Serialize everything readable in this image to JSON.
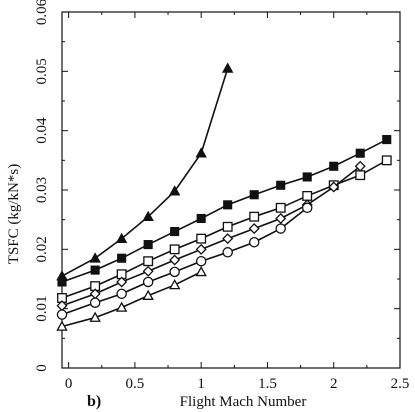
{
  "chart_data": {
    "type": "line",
    "title": "",
    "xlabel": "Flight Mach Number",
    "ylabel": "TSFC (kg/kN*s)",
    "panel_label": "b)",
    "xlim": [
      -0.05,
      2.5
    ],
    "ylim": [
      0,
      0.06
    ],
    "x_ticks": [
      0,
      0.5,
      1,
      1.5,
      2,
      2.5
    ],
    "x_tick_labels": [
      "0",
      "0.5",
      "1",
      "1.5",
      "2",
      "2.5"
    ],
    "y_ticks": [
      0,
      0.01,
      0.02,
      0.03,
      0.04,
      0.05,
      0.06
    ],
    "y_tick_labels": [
      "0",
      "0.01",
      "0.02",
      "0.03",
      "0.04",
      "0.05",
      "0.06"
    ],
    "grid": false,
    "legend": "none",
    "series": [
      {
        "marker": "filled-triangle",
        "x": [
          -0.05,
          0.2,
          0.4,
          0.6,
          0.8,
          1.0,
          1.2
        ],
        "y": [
          0.0155,
          0.0185,
          0.0218,
          0.0255,
          0.0298,
          0.0362,
          0.0505
        ]
      },
      {
        "marker": "filled-square",
        "x": [
          -0.05,
          0.2,
          0.4,
          0.6,
          0.8,
          1.0,
          1.2,
          1.4,
          1.6,
          1.8,
          2.0,
          2.2,
          2.4
        ],
        "y": [
          0.0145,
          0.0165,
          0.0185,
          0.0208,
          0.023,
          0.0252,
          0.0275,
          0.0292,
          0.0308,
          0.0322,
          0.034,
          0.0362,
          0.0385
        ]
      },
      {
        "marker": "open-square",
        "x": [
          -0.05,
          0.2,
          0.4,
          0.6,
          0.8,
          1.0,
          1.2,
          1.4,
          1.6,
          1.8,
          2.0,
          2.2,
          2.4
        ],
        "y": [
          0.0118,
          0.0138,
          0.0158,
          0.018,
          0.02,
          0.0218,
          0.0238,
          0.0255,
          0.027,
          0.029,
          0.0308,
          0.0325,
          0.035
        ]
      },
      {
        "marker": "open-diamond",
        "x": [
          -0.05,
          0.2,
          0.4,
          0.6,
          0.8,
          1.0,
          1.2,
          1.4,
          1.6,
          1.8,
          2.0,
          2.2
        ],
        "y": [
          0.0105,
          0.0125,
          0.0145,
          0.0163,
          0.0182,
          0.02,
          0.0218,
          0.0235,
          0.0252,
          0.0275,
          0.0305,
          0.034
        ]
      },
      {
        "marker": "open-circle",
        "x": [
          -0.05,
          0.2,
          0.4,
          0.6,
          0.8,
          1.0,
          1.2,
          1.4,
          1.6,
          1.8
        ],
        "y": [
          0.009,
          0.011,
          0.0125,
          0.0145,
          0.0162,
          0.018,
          0.0195,
          0.0212,
          0.0235,
          0.027
        ]
      },
      {
        "marker": "open-triangle",
        "x": [
          -0.05,
          0.2,
          0.4,
          0.6,
          0.8,
          1.0
        ],
        "y": [
          0.007,
          0.0085,
          0.0102,
          0.0122,
          0.014,
          0.0162
        ]
      }
    ]
  },
  "colors": {
    "ink": "#111111",
    "background": "#ffffff"
  }
}
